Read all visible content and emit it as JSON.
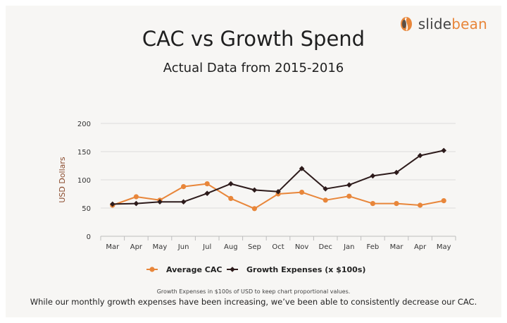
{
  "brand": {
    "name_part1": "slide",
    "name_part2": "bean",
    "icon": "bean-icon",
    "colors": {
      "mark": "#e8863a",
      "text": "#444444"
    }
  },
  "footnote": {
    "small": "Growth Expenses in $100s of USD to keep chart proportional values.",
    "main": "While our monthly growth expenses have been increasing, we’ve been able to consistently decrease our CAC."
  },
  "chart_data": {
    "type": "line",
    "title": "CAC vs Growth Spend",
    "subtitle": "Actual Data from 2015-2016",
    "xlabel": "",
    "ylabel": "USD Dollars",
    "ylim": [
      0,
      200
    ],
    "yticks": [
      0,
      50,
      100,
      150,
      200
    ],
    "grid": true,
    "legend_position": "bottom",
    "categories": [
      "Mar",
      "Apr",
      "May",
      "Jun",
      "Jul",
      "Aug",
      "Sep",
      "Oct",
      "Nov",
      "Dec",
      "Jan",
      "Feb",
      "Mar",
      "Apr",
      "May"
    ],
    "series": [
      {
        "name": "Average CAC",
        "color": "#e8863a",
        "marker": "circle",
        "values": [
          55,
          70,
          64,
          88,
          93,
          67,
          49,
          75,
          78,
          64,
          71,
          58,
          58,
          55,
          63
        ]
      },
      {
        "name": "Growth Expenses (x $100s)",
        "color": "#2d1b1b",
        "marker": "diamond",
        "values": [
          57,
          58,
          61,
          61,
          76,
          93,
          82,
          79,
          120,
          84,
          91,
          107,
          113,
          143,
          152
        ]
      }
    ]
  }
}
